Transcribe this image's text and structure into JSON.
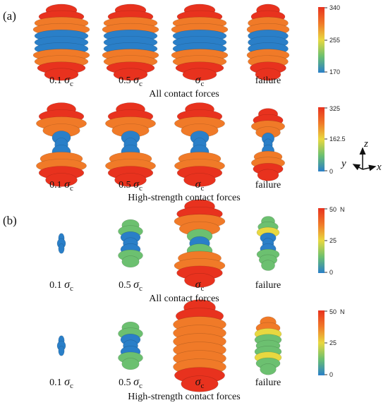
{
  "panels": [
    {
      "label": "(a)",
      "rows": [
        {
          "caption": "All contact forces",
          "states": [
            "0.1",
            "0.5",
            "",
            "failure"
          ],
          "colorbar": {
            "max": "340",
            "mid": "255",
            "min": "170",
            "unit": ""
          }
        },
        {
          "caption": "High-strength contact forces",
          "states": [
            "0.1",
            "0.5",
            "",
            "failure"
          ],
          "colorbar": {
            "max": "325",
            "mid": "162.5",
            "min": "0",
            "unit": ""
          }
        }
      ]
    },
    {
      "label": "(b)",
      "rows": [
        {
          "caption": "All contact forces",
          "states": [
            "0.1",
            "0.5",
            "",
            "failure"
          ],
          "colorbar": {
            "max": "50",
            "mid": "25",
            "min": "0",
            "unit": "N"
          }
        },
        {
          "caption": "High-strength contact forces",
          "states": [
            "0.1",
            "0.5",
            "",
            "failure"
          ],
          "colorbar": {
            "max": "50",
            "mid": "25",
            "min": "0",
            "unit": "N"
          }
        }
      ]
    }
  ],
  "sigma_symbol": "σ",
  "sigma_subscript": "c",
  "axes": {
    "z": "z",
    "y": "y",
    "x": "x"
  },
  "colors": {
    "high": "#e8321e",
    "orange": "#f07a28",
    "yellow": "#e8d840",
    "green": "#6cc070",
    "low": "#2a7fc8"
  }
}
